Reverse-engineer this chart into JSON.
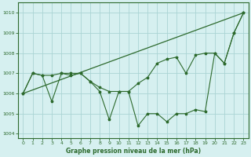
{
  "line_zigzag": {
    "x": [
      0,
      1,
      2,
      3,
      4,
      5,
      6,
      7,
      8,
      9,
      10,
      11,
      12,
      13,
      14,
      15,
      16,
      17,
      18,
      19,
      20,
      21,
      22,
      23
    ],
    "y": [
      1006.0,
      1007.0,
      1006.9,
      1005.6,
      1007.0,
      1006.9,
      1007.0,
      1006.6,
      1006.1,
      1004.7,
      1006.1,
      1006.1,
      1004.4,
      1005.0,
      1005.0,
      1004.6,
      1005.0,
      1005.0,
      1005.2,
      1005.1,
      1008.0,
      1007.5,
      1009.0,
      1010.0
    ]
  },
  "line_smooth": {
    "x": [
      0,
      1,
      2,
      3,
      4,
      5,
      6,
      7,
      8,
      9,
      10,
      11,
      12,
      13,
      14,
      15,
      16,
      17,
      18,
      19,
      20,
      21,
      22,
      23
    ],
    "y": [
      1006.0,
      1007.0,
      1006.9,
      1006.9,
      1007.0,
      1007.0,
      1007.0,
      1006.6,
      1006.3,
      1006.1,
      1006.1,
      1006.1,
      1006.5,
      1006.8,
      1007.5,
      1007.7,
      1007.8,
      1007.0,
      1007.9,
      1008.0,
      1008.0,
      1007.5,
      1009.0,
      1010.0
    ]
  },
  "line_trend": {
    "x": [
      0,
      23
    ],
    "y": [
      1006.0,
      1010.0
    ]
  },
  "color": "#2d6a2d",
  "bg_color": "#d6f0f0",
  "grid_color": "#aad4d4",
  "ylim": [
    1003.8,
    1010.5
  ],
  "xlim": [
    -0.5,
    23.5
  ],
  "yticks": [
    1004,
    1005,
    1006,
    1007,
    1008,
    1009,
    1010
  ],
  "xticks": [
    0,
    1,
    2,
    3,
    4,
    5,
    6,
    7,
    8,
    9,
    10,
    11,
    12,
    13,
    14,
    15,
    16,
    17,
    18,
    19,
    20,
    21,
    22,
    23
  ],
  "xlabel": "Graphe pression niveau de la mer (hPa)"
}
